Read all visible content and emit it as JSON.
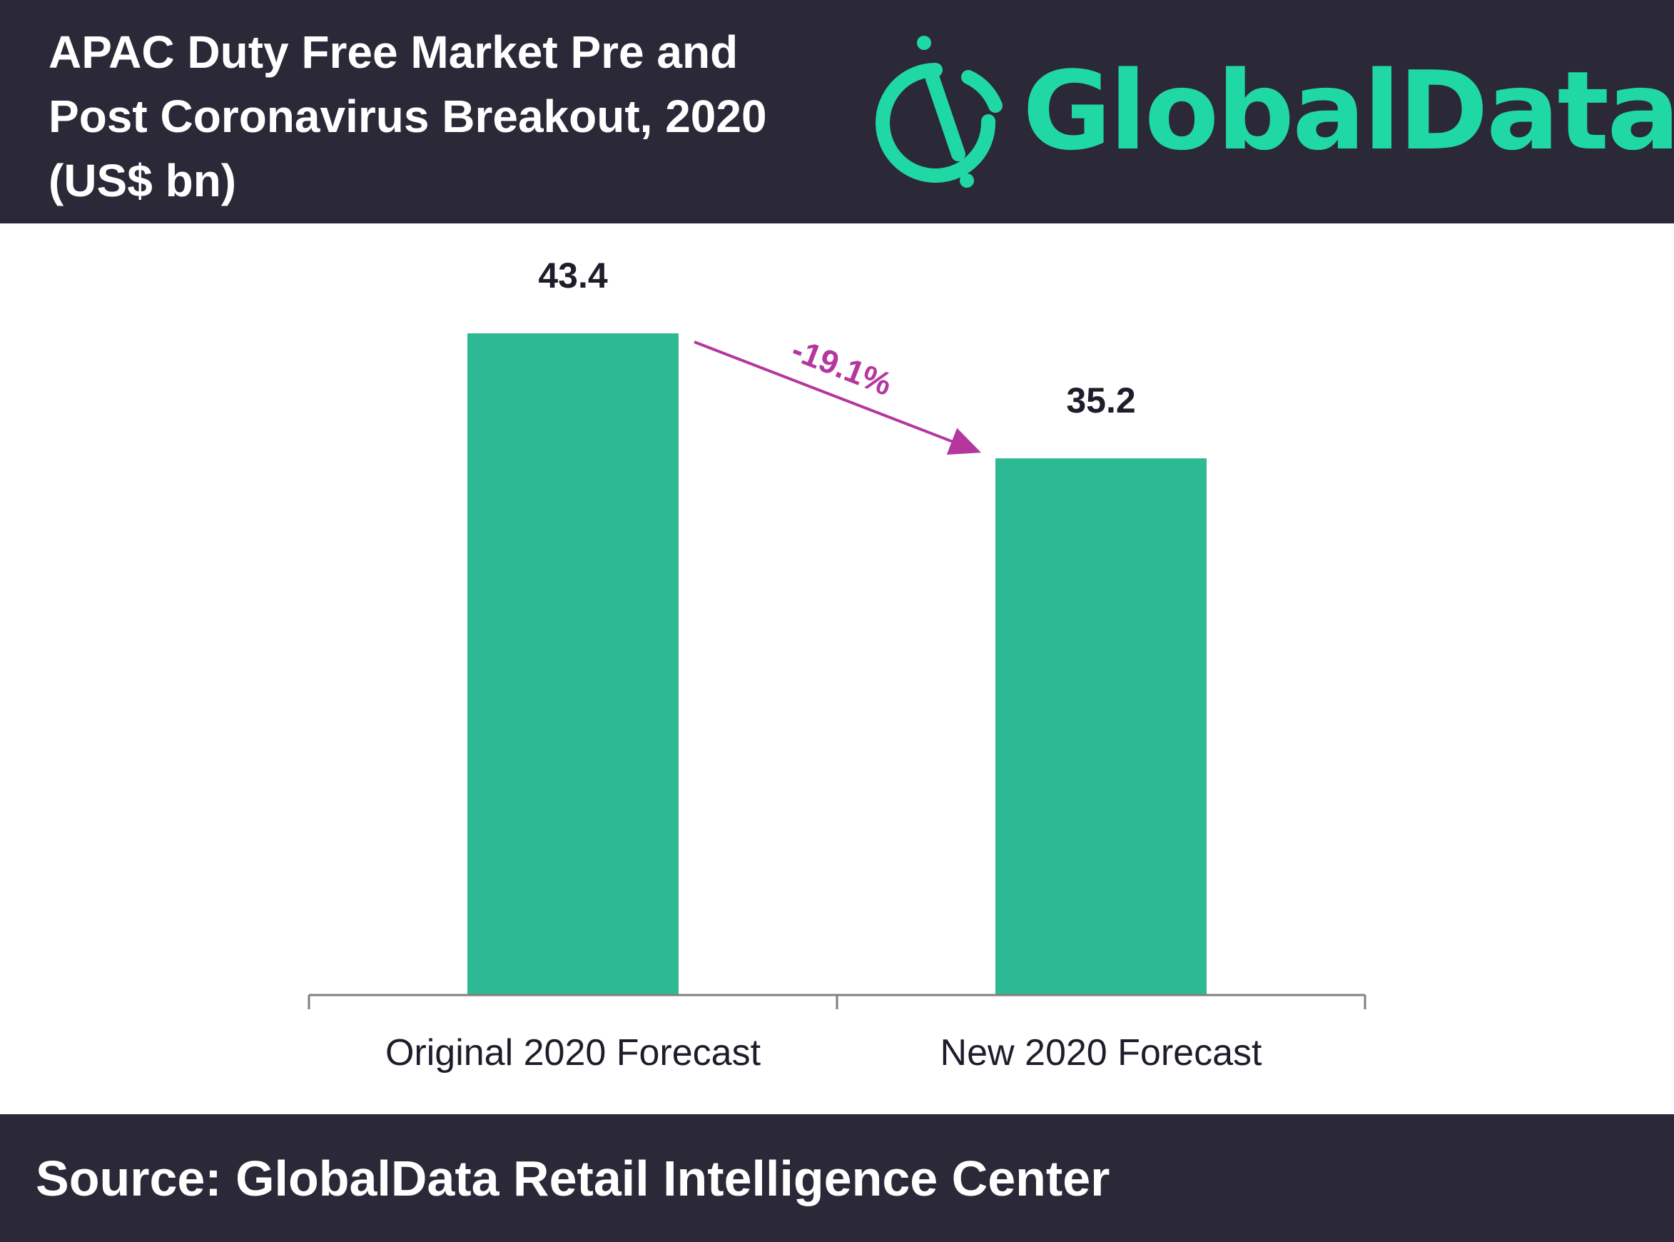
{
  "header": {
    "title": "APAC Duty Free Market Pre and Post Coronavirus Breakout, 2020 (US$ bn)",
    "logo_text": "GlobalData."
  },
  "chart_data": {
    "type": "bar",
    "title": "APAC Duty Free Market Pre and Post Coronavirus Breakout, 2020 (US$ bn)",
    "categories": [
      "Original 2020 Forecast",
      "New 2020 Forecast"
    ],
    "values": [
      43.4,
      35.2
    ],
    "value_labels": [
      "43.4",
      "35.2"
    ],
    "xlabel": "",
    "ylabel": "US$ bn",
    "ylim": [
      0,
      43.4
    ],
    "grid": false,
    "annotation": {
      "text": "-19.1%",
      "from": "Original 2020 Forecast",
      "to": "New 2020 Forecast"
    },
    "colors": {
      "bar": "#2db993",
      "arrow": "#b5369e",
      "axis": "#7f7f7f",
      "text": "#1f1d2b"
    }
  },
  "footer": {
    "source": "Source: GlobalData Retail Intelligence Center"
  },
  "colors": {
    "dark_band": "#2b2838",
    "brand": "#20d8a3"
  }
}
